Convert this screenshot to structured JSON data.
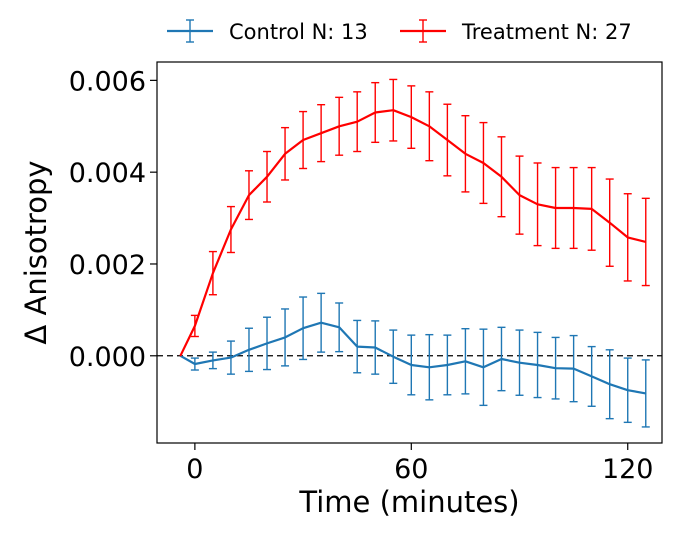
{
  "chart_data": {
    "type": "line",
    "xlabel": "Time (minutes)",
    "ylabel": "Δ Anisotropy",
    "xlim": [
      -10.5,
      129.5
    ],
    "ylim": [
      -0.0019,
      0.0064
    ],
    "xticks": [
      0,
      60,
      120
    ],
    "xtick_labels": [
      "0",
      "60",
      "120"
    ],
    "yticks": [
      0.0,
      0.002,
      0.004,
      0.006
    ],
    "ytick_labels": [
      "0.000",
      "0.002",
      "0.004",
      "0.006"
    ],
    "grid": false,
    "legend": "top, outside plot, horizontal",
    "reference_line": {
      "y": 0,
      "style": "dashed",
      "color": "#000000"
    },
    "x": [
      -4,
      0,
      5,
      10,
      15,
      20,
      25,
      30,
      35,
      40,
      45,
      50,
      55,
      60,
      65,
      70,
      75,
      80,
      85,
      90,
      95,
      100,
      105,
      110,
      115,
      120,
      125
    ],
    "series": [
      {
        "name": "Control N: 13",
        "color": "#1f77b4",
        "values": [
          0.0,
          -0.00018,
          -0.0001,
          -4e-05,
          0.00013,
          0.00027,
          0.0004,
          0.0006,
          0.00072,
          0.00062,
          0.0002,
          0.00018,
          -2e-05,
          -0.0002,
          -0.00025,
          -0.0002,
          -0.00012,
          -0.00025,
          -7e-05,
          -0.00015,
          -0.0002,
          -0.00027,
          -0.00028,
          -0.00045,
          -0.00062,
          -0.00075,
          -0.00082
        ],
        "errors": [
          0.0,
          0.00013,
          0.00018,
          0.00036,
          0.00047,
          0.00057,
          0.00062,
          0.00068,
          0.00064,
          0.00053,
          0.00057,
          0.00058,
          0.00058,
          0.00065,
          0.00071,
          0.00065,
          0.00071,
          0.00083,
          0.00069,
          0.00071,
          0.00071,
          0.00067,
          0.00072,
          0.00065,
          0.00075,
          0.0007,
          0.00073
        ]
      },
      {
        "name": "Treatment N: 27",
        "color": "#ff0000",
        "values": [
          0.0,
          0.00065,
          0.0018,
          0.00275,
          0.0035,
          0.0039,
          0.0044,
          0.0047,
          0.00485,
          0.005,
          0.0051,
          0.0053,
          0.00535,
          0.0052,
          0.005,
          0.0047,
          0.0044,
          0.0042,
          0.0039,
          0.0035,
          0.0033,
          0.00322,
          0.00322,
          0.0032,
          0.0029,
          0.00258,
          0.00248
        ],
        "errors": [
          0.0,
          0.00023,
          0.00047,
          0.0005,
          0.00053,
          0.00055,
          0.00057,
          0.00062,
          0.00062,
          0.00063,
          0.00065,
          0.00065,
          0.00067,
          0.00068,
          0.00075,
          0.00078,
          0.00083,
          0.00088,
          0.00087,
          0.00085,
          0.0009,
          0.00088,
          0.00088,
          0.0009,
          0.00095,
          0.00095,
          0.00095
        ]
      }
    ]
  }
}
